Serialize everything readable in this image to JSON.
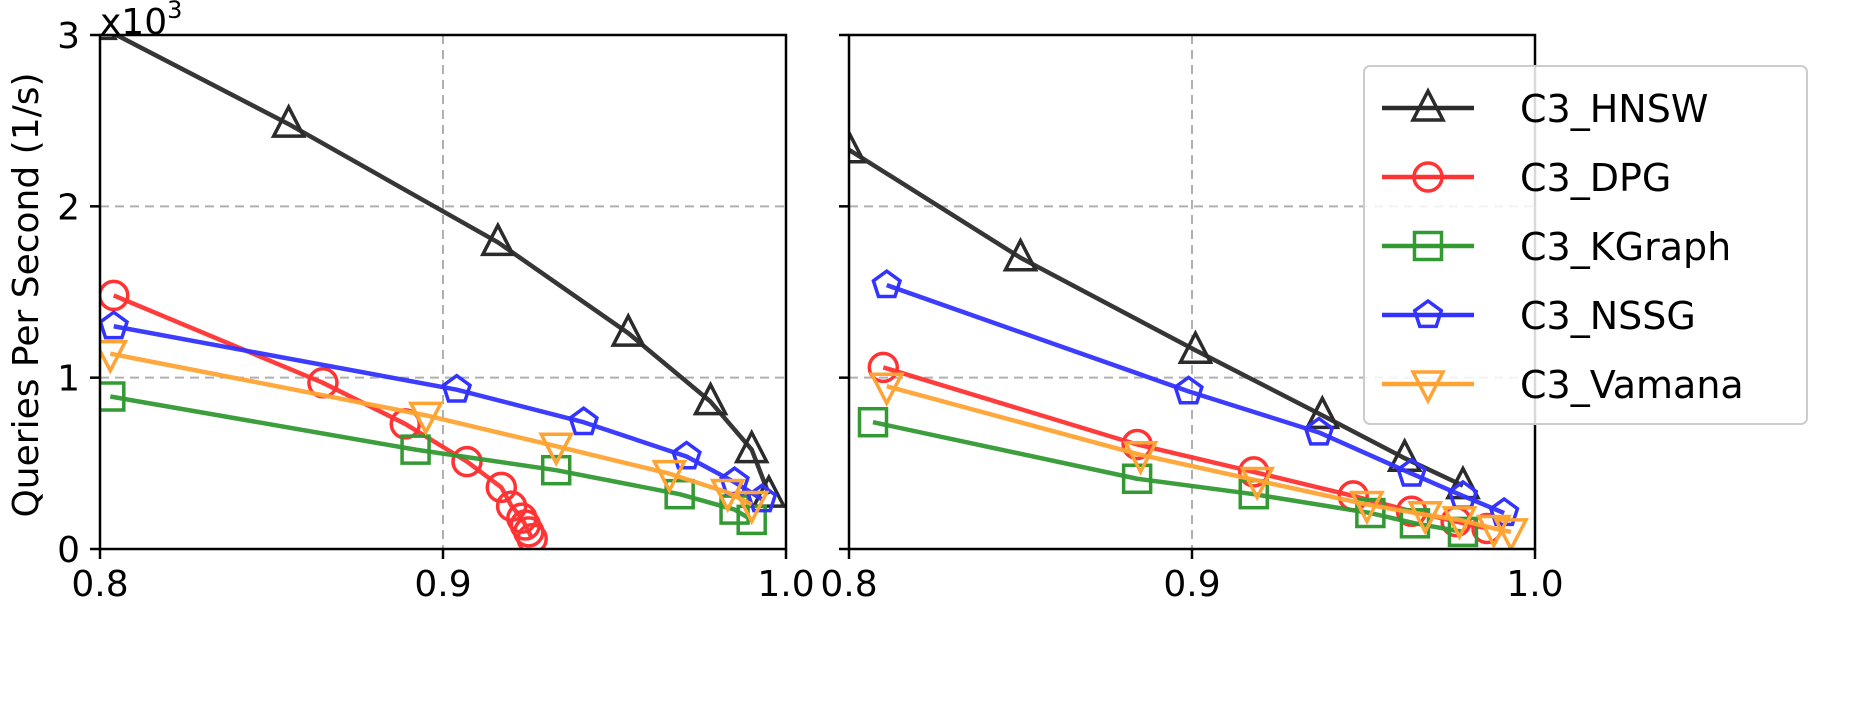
{
  "chart_data": [
    {
      "type": "line",
      "ylabel": "Queries Per Second (1/s)",
      "y_multiplier_text": "x10",
      "y_multiplier_exp": "3",
      "xlim": [
        0.8,
        1.0
      ],
      "ylim": [
        0,
        3
      ],
      "x_ticks": [
        "0.8",
        "0.9",
        "1.0"
      ],
      "y_ticks": [
        "0",
        "1",
        "2",
        "3"
      ],
      "grid": true,
      "series": [
        {
          "name": "C3_HNSW",
          "color": "#2b2b2b",
          "marker": "triangle-up",
          "x": [
            0.8,
            0.855,
            0.916,
            0.954,
            0.978,
            0.99,
            0.995
          ],
          "y": [
            3.05,
            2.48,
            1.79,
            1.26,
            0.86,
            0.58,
            0.32
          ]
        },
        {
          "name": "C3_DPG",
          "color": "#ff3333",
          "marker": "circle",
          "x": [
            0.804,
            0.865,
            0.889,
            0.907,
            0.917,
            0.92,
            0.923,
            0.924,
            0.925,
            0.926
          ],
          "y": [
            1.48,
            0.97,
            0.73,
            0.51,
            0.36,
            0.25,
            0.18,
            0.14,
            0.1,
            0.06
          ]
        },
        {
          "name": "C3_KGraph",
          "color": "#339933",
          "marker": "square",
          "x": [
            0.803,
            0.892,
            0.933,
            0.969,
            0.985,
            0.99
          ],
          "y": [
            0.89,
            0.58,
            0.46,
            0.32,
            0.23,
            0.17
          ]
        },
        {
          "name": "C3_NSSG",
          "color": "#3333ff",
          "marker": "pentagon",
          "x": [
            0.804,
            0.904,
            0.941,
            0.971,
            0.985,
            0.993
          ],
          "y": [
            1.3,
            0.93,
            0.74,
            0.54,
            0.39,
            0.29
          ]
        },
        {
          "name": "C3_Vamana",
          "color": "#ffa333",
          "marker": "triangle-down",
          "x": [
            0.803,
            0.895,
            0.933,
            0.966,
            0.983,
            0.99
          ],
          "y": [
            1.14,
            0.78,
            0.6,
            0.44,
            0.33,
            0.26
          ]
        }
      ]
    },
    {
      "type": "line",
      "xlim": [
        0.8,
        1.0
      ],
      "ylim": [
        0,
        3
      ],
      "x_ticks": [
        "0.8",
        "0.9",
        "1.0"
      ],
      "grid": true,
      "legend": "top-right",
      "series": [
        {
          "name": "C3_HNSW",
          "color": "#2b2b2b",
          "marker": "triangle-up",
          "x": [
            0.8,
            0.85,
            0.901,
            0.938,
            0.962,
            0.979
          ],
          "y": [
            2.33,
            1.7,
            1.16,
            0.78,
            0.53,
            0.37
          ]
        },
        {
          "name": "C3_DPG",
          "color": "#ff3333",
          "marker": "circle",
          "x": [
            0.81,
            0.884,
            0.918,
            0.947,
            0.964,
            0.977,
            0.986
          ],
          "y": [
            1.06,
            0.61,
            0.45,
            0.31,
            0.22,
            0.16,
            0.12
          ]
        },
        {
          "name": "C3_KGraph",
          "color": "#339933",
          "marker": "square",
          "x": [
            0.807,
            0.884,
            0.918,
            0.952,
            0.965,
            0.979
          ],
          "y": [
            0.74,
            0.41,
            0.32,
            0.21,
            0.15,
            0.1
          ]
        },
        {
          "name": "C3_NSSG",
          "color": "#3333ff",
          "marker": "pentagon",
          "x": [
            0.811,
            0.899,
            0.937,
            0.964,
            0.979,
            0.991
          ],
          "y": [
            1.54,
            0.92,
            0.68,
            0.44,
            0.31,
            0.21
          ]
        },
        {
          "name": "C3_Vamana",
          "color": "#ffa333",
          "marker": "triangle-down",
          "x": [
            0.811,
            0.885,
            0.919,
            0.951,
            0.968,
            0.978,
            0.988,
            0.993
          ],
          "y": [
            0.95,
            0.55,
            0.4,
            0.26,
            0.2,
            0.17,
            0.12,
            0.1
          ]
        }
      ]
    }
  ]
}
